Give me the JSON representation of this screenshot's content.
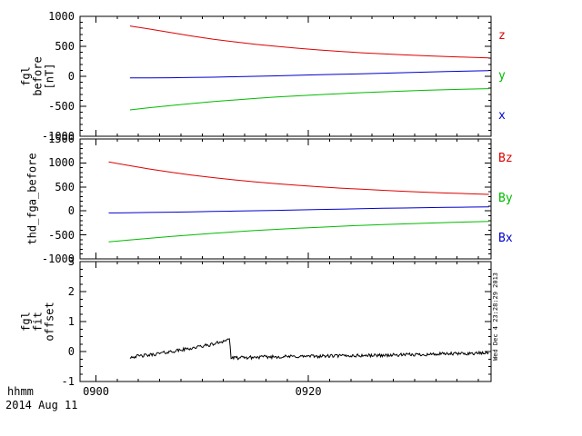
{
  "window": {
    "background": "#ffffff"
  },
  "xaxis": {
    "label": "hhmm",
    "date": "2014 Aug 11",
    "range": [
      -1.5,
      37.2
    ],
    "minor_step": 2,
    "ticks": [
      {
        "t": 0,
        "label": "0900"
      },
      {
        "t": 20,
        "label": "0920"
      }
    ]
  },
  "footer": {
    "timestamp": "Wed Dec 4 23:28:29 2013"
  },
  "chart_data": [
    {
      "type": "line",
      "ylabel": "fgl\nbefore\n[nT]",
      "ylim": [
        -1000,
        1000
      ],
      "yticks": [
        1000,
        500,
        0,
        -500,
        -1000
      ],
      "yminor": 100,
      "series": [
        {
          "name": "z",
          "color": "#dd0000",
          "x": [
            3.2,
            5,
            7,
            9,
            11,
            13,
            15,
            17,
            19,
            21,
            23,
            25,
            27,
            29,
            31,
            33,
            35,
            37
          ],
          "y": [
            840,
            790,
            730,
            672,
            620,
            575,
            535,
            500,
            468,
            440,
            415,
            393,
            374,
            357,
            342,
            329,
            318,
            308
          ]
        },
        {
          "name": "y",
          "color": "#00bb00",
          "x": [
            3.2,
            5,
            7,
            9,
            11,
            13,
            15,
            17,
            19,
            21,
            23,
            25,
            27,
            29,
            31,
            33,
            35,
            37
          ],
          "y": [
            -560,
            -525,
            -488,
            -454,
            -423,
            -395,
            -369,
            -346,
            -325,
            -306,
            -289,
            -273,
            -259,
            -246,
            -234,
            -224,
            -214,
            -206
          ]
        },
        {
          "name": "x",
          "color": "#0000cc",
          "x": [
            3.2,
            5,
            7,
            9,
            11,
            13,
            15,
            17,
            19,
            21,
            23,
            25,
            27,
            29,
            31,
            33,
            35,
            37
          ],
          "y": [
            -28,
            -26,
            -24,
            -20,
            -15,
            -8,
            0,
            8,
            16,
            25,
            34,
            43,
            52,
            61,
            70,
            79,
            88,
            95
          ]
        }
      ],
      "labels_right": [
        {
          "text": "z",
          "color": "#dd0000"
        },
        {
          "text": "y",
          "color": "#00bb00"
        },
        {
          "text": "x",
          "color": "#0000cc"
        }
      ]
    },
    {
      "type": "line",
      "ylabel": "thd_fga_before",
      "ylim": [
        -1000,
        1500
      ],
      "yticks": [
        1500,
        1000,
        500,
        0,
        -500,
        -1000
      ],
      "yminor": 100,
      "series": [
        {
          "name": "Bz",
          "color": "#dd0000",
          "x": [
            1.2,
            3,
            5,
            7,
            9,
            11,
            13,
            15,
            17,
            19,
            21,
            23,
            25,
            27,
            29,
            31,
            33,
            35,
            37
          ],
          "y": [
            1020,
            950,
            875,
            808,
            748,
            695,
            648,
            606,
            568,
            534,
            504,
            476,
            452,
            429,
            409,
            391,
            374,
            359,
            345
          ]
        },
        {
          "name": "By",
          "color": "#00bb00",
          "x": [
            1.2,
            3,
            5,
            7,
            9,
            11,
            13,
            15,
            17,
            19,
            21,
            23,
            25,
            27,
            29,
            31,
            33,
            35,
            37
          ],
          "y": [
            -645,
            -610,
            -572,
            -535,
            -500,
            -468,
            -438,
            -410,
            -385,
            -361,
            -340,
            -320,
            -302,
            -285,
            -270,
            -256,
            -243,
            -231,
            -220
          ]
        },
        {
          "name": "Bx",
          "color": "#0000cc",
          "x": [
            1.2,
            3,
            5,
            7,
            9,
            11,
            13,
            15,
            17,
            19,
            21,
            23,
            25,
            27,
            29,
            31,
            33,
            35,
            37
          ],
          "y": [
            -42,
            -38,
            -33,
            -27,
            -20,
            -12,
            -4,
            4,
            12,
            21,
            30,
            38,
            46,
            54,
            61,
            68,
            74,
            79,
            84
          ]
        }
      ],
      "labels_right": [
        {
          "text": "Bz",
          "color": "#dd0000"
        },
        {
          "text": "By",
          "color": "#00bb00"
        },
        {
          "text": "Bx",
          "color": "#0000cc"
        }
      ]
    },
    {
      "type": "line",
      "ylabel": "fgl\nfit\noffset",
      "ylim": [
        -1,
        3
      ],
      "yticks": [
        3,
        2,
        1,
        0,
        -1
      ],
      "yminor": 0.25,
      "series": [
        {
          "name": "offset",
          "color": "#000000",
          "noise": 0.055,
          "step": 0.08,
          "envelope": [
            [
              3.2,
              -0.18
            ],
            [
              5,
              -0.12
            ],
            [
              8,
              0.05
            ],
            [
              11,
              0.24
            ],
            [
              12.6,
              0.42
            ],
            [
              12.72,
              -0.22
            ],
            [
              16,
              -0.18
            ],
            [
              22,
              -0.15
            ],
            [
              28,
              -0.12
            ],
            [
              33,
              -0.08
            ],
            [
              37,
              -0.05
            ]
          ]
        }
      ],
      "labels_right": []
    }
  ]
}
